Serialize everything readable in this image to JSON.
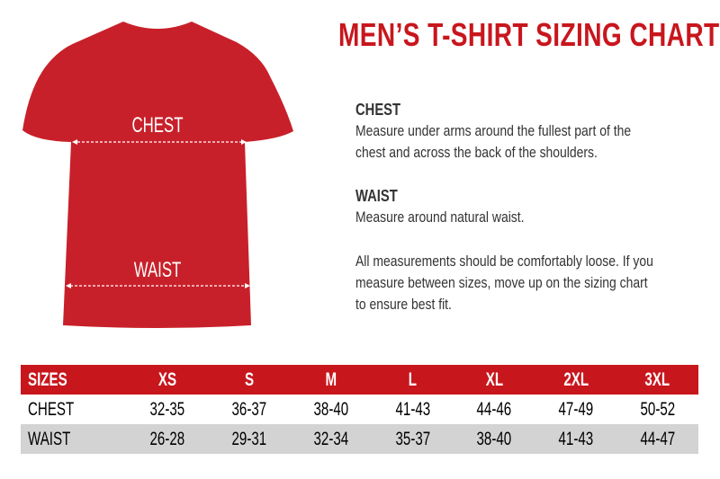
{
  "title": "MEN’S T-SHIRT SIZING CHART",
  "shirt": {
    "color": "#c8202a",
    "chest_label": "CHEST",
    "waist_label": "WAIST"
  },
  "sections": {
    "chest": {
      "heading": "CHEST",
      "text": [
        "Measure under arms around the fullest part of the",
        "chest and across the back of the shoulders."
      ]
    },
    "waist": {
      "heading": "WAIST",
      "text": [
        "Measure around natural waist."
      ]
    },
    "note": {
      "text": [
        "All measurements should be comfortably loose. If you",
        "measure between sizes, move up on the sizing chart",
        "to ensure best fit."
      ]
    }
  },
  "table": {
    "header": [
      "SIZES",
      "XS",
      "S",
      "M",
      "L",
      "XL",
      "2XL",
      "3XL"
    ],
    "rows": [
      [
        "CHEST",
        "32-35",
        "36-37",
        "38-40",
        "41-43",
        "44-46",
        "47-49",
        "50-52"
      ],
      [
        "WAIST",
        "26-28",
        "29-31",
        "32-34",
        "35-37",
        "38-40",
        "41-43",
        "44-47"
      ]
    ]
  },
  "colors": {
    "accent": "#c8161d",
    "row_alt": "#d3d3d3"
  }
}
